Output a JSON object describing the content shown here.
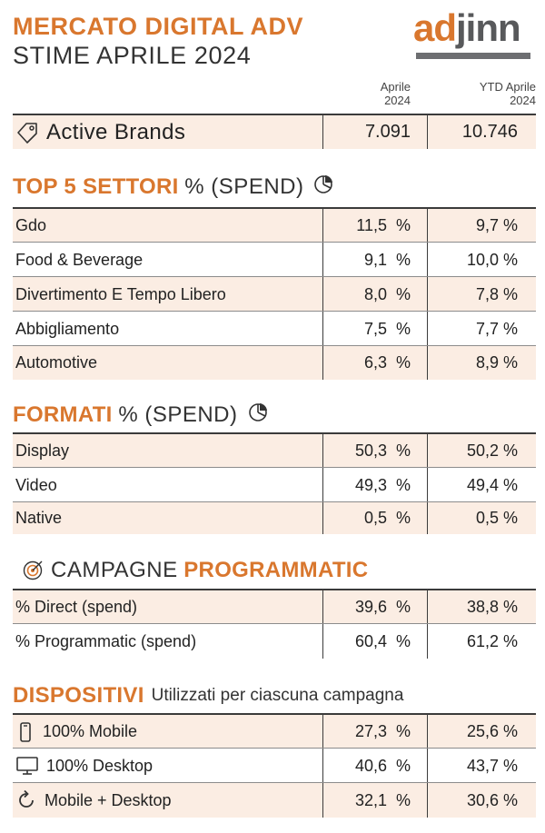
{
  "header": {
    "title_line1": "MERCATO DIGITAL ADV",
    "title_line2": "STIME APRILE 2024",
    "logo_ad": "ad",
    "logo_jinn": "jinn",
    "col1_line1": "Aprile",
    "col1_line2": "2024",
    "col2_line1": "YTD Aprile",
    "col2_line2": "2024"
  },
  "brands": {
    "label": "Active Brands",
    "v1": "7.091",
    "v2": "10.746",
    "icon": "tag-icon"
  },
  "settori": {
    "title_bold": "TOP 5 SETTORI",
    "title_rest": "% (SPEND)",
    "icon": "pie-chart-icon",
    "rows": [
      {
        "label": "Gdo",
        "v1": "11,5  %",
        "v2": "9,7 %"
      },
      {
        "label": "Food & Beverage",
        "v1": "9,1  %",
        "v2": "10,0 %"
      },
      {
        "label": "Divertimento E Tempo Libero",
        "v1": "8,0  %",
        "v2": "7,8 %"
      },
      {
        "label": "Abbigliamento",
        "v1": "7,5  %",
        "v2": "7,7 %"
      },
      {
        "label": "Automotive",
        "v1": "6,3  %",
        "v2": "8,9 %"
      }
    ]
  },
  "formati": {
    "title_bold": "FORMATI",
    "title_rest": "% (SPEND)",
    "icon": "pie-chart-icon",
    "rows": [
      {
        "label": "Display",
        "v1": "50,3  %",
        "v2": "50,2 %"
      },
      {
        "label": "Video",
        "v1": "49,3  %",
        "v2": "49,4 %"
      },
      {
        "label": "Native",
        "v1": "0,5  %",
        "v2": "0,5 %"
      }
    ]
  },
  "programmatic": {
    "title_rest": "CAMPAGNE",
    "title_bold": "PROGRAMMATIC",
    "icon": "target-icon",
    "rows": [
      {
        "label": "% Direct (spend)",
        "v1": "39,6  %",
        "v2": "38,8 %"
      },
      {
        "label": "% Programmatic (spend)",
        "v1": "60,4  %",
        "v2": "61,2 %"
      }
    ]
  },
  "dispositivi": {
    "title_bold": "DISPOSITIVI",
    "subtitle": "Utilizzati per ciascuna campagna",
    "rows": [
      {
        "label": "100% Mobile",
        "v1": "27,3  %",
        "v2": "25,6 %",
        "icon": "smartphone-icon"
      },
      {
        "label": "100% Desktop",
        "v1": "40,6  %",
        "v2": "43,7 %",
        "icon": "monitor-icon"
      },
      {
        "label": "Mobile + Desktop",
        "v1": "32,1  %",
        "v2": "30,6 %",
        "icon": "refresh-icon"
      }
    ]
  },
  "colors": {
    "accent": "#D9772E",
    "shade": "#FBEDE3",
    "text": "#222222"
  }
}
